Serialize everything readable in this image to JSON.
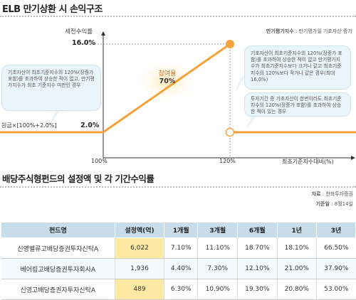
{
  "titles": {
    "main": "ELB 만기상환 시 손익구조",
    "table": "배당주식형펀드의 설정액 및 각 기간수익률"
  },
  "chart": {
    "y_axis_label": "세전수익률",
    "y_ticks": [
      "16.0%",
      "2.0%"
    ],
    "x_axis_label": "최초기준지수대비(%)",
    "x_ticks": [
      "100%",
      "120%"
    ],
    "note_label": "만기평가지수",
    "note_text": " : 만기평가일 기초자산 종가",
    "principal_label": "원금×[100%+2.0%]",
    "participation_label": "참여율",
    "participation_value": "70%",
    "bubble_left": "기초자산이 최초기준지수의 120%(장중가 포함)를 초과하여 상승한 적이 없고, 만기평가지수가 최초 기준지수 미만인 경우",
    "bubble_right_top": "기초자산이 최초기준지수의 120%(장중가 포함)를 초과하여 상승한 적이 없고 만기평가지수가 최초기준지수보다 크거나 같고 최초기준지수의 120%보다 작거나 같은 경우(최대 16.0%)",
    "bubble_right_bottom": "투자기간 중 기초자산이 한번이라도 최초기준지수의 120%(장중가 포함)를 초과하여 상승한 적이 있는 경우",
    "colors": {
      "line": "#f5a13a",
      "bubble": "#eaf4fb",
      "dot": "#f7a23c"
    }
  },
  "source": {
    "label": "자료",
    "value": "한화투자증권",
    "date_label": "기준일",
    "date_value": "8월14일"
  },
  "table": {
    "headers": [
      "펀드명",
      "설정액(억)",
      "1개월",
      "3개월",
      "6개월",
      "1년",
      "3년"
    ],
    "rows": [
      [
        "신영밸류고배당증권투자신탁A",
        "6,022",
        "7.10%",
        "11.10%",
        "18.70%",
        "18.10%",
        "66.50%"
      ],
      [
        "베어링고배당증권투자회사A",
        "1,936",
        "4.40%",
        "7.30%",
        "12.10%",
        "21.00%",
        "37.90%"
      ],
      [
        "신영고배당증권자투자신탁A",
        "489",
        "6.30%",
        "10.90%",
        "19.30%",
        "20.80%",
        "53.00%"
      ]
    ]
  }
}
